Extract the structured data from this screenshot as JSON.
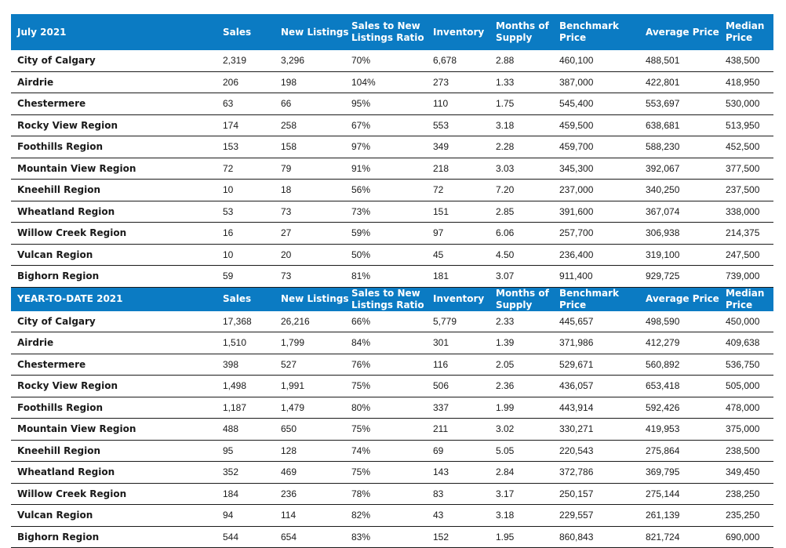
{
  "headers": {
    "sales": "Sales",
    "new_listings": "New Listings",
    "ratio": "Sales to New Listings Ratio",
    "inventory": "Inventory",
    "months": "Months of Supply",
    "benchmark": "Benchmark Price",
    "average": "Average Price",
    "median": "Median Price"
  },
  "sections": [
    {
      "title": "July 2021",
      "rows": [
        {
          "region": "City of Calgary",
          "sales": "2,319",
          "new_listings": "3,296",
          "ratio": "70%",
          "inventory": "6,678",
          "months": "2.88",
          "benchmark": "460,100",
          "average": "488,501",
          "median": "438,500"
        },
        {
          "region": "Airdrie",
          "sales": "206",
          "new_listings": "198",
          "ratio": "104%",
          "inventory": "273",
          "months": "1.33",
          "benchmark": "387,000",
          "average": "422,801",
          "median": "418,950"
        },
        {
          "region": "Chestermere",
          "sales": "63",
          "new_listings": "66",
          "ratio": "95%",
          "inventory": "110",
          "months": "1.75",
          "benchmark": "545,400",
          "average": "553,697",
          "median": "530,000"
        },
        {
          "region": "Rocky View Region",
          "sales": "174",
          "new_listings": "258",
          "ratio": "67%",
          "inventory": "553",
          "months": "3.18",
          "benchmark": "459,500",
          "average": "638,681",
          "median": "513,950"
        },
        {
          "region": "Foothills Region",
          "sales": "153",
          "new_listings": "158",
          "ratio": "97%",
          "inventory": "349",
          "months": "2.28",
          "benchmark": "459,700",
          "average": "588,230",
          "median": "452,500"
        },
        {
          "region": "Mountain View Region",
          "sales": "72",
          "new_listings": "79",
          "ratio": "91%",
          "inventory": "218",
          "months": "3.03",
          "benchmark": "345,300",
          "average": "392,067",
          "median": "377,500"
        },
        {
          "region": "Kneehill Region",
          "sales": "10",
          "new_listings": "18",
          "ratio": "56%",
          "inventory": "72",
          "months": "7.20",
          "benchmark": "237,000",
          "average": "340,250",
          "median": "237,500"
        },
        {
          "region": "Wheatland Region",
          "sales": "53",
          "new_listings": "73",
          "ratio": "73%",
          "inventory": "151",
          "months": "2.85",
          "benchmark": "391,600",
          "average": "367,074",
          "median": "338,000"
        },
        {
          "region": "Willow Creek Region",
          "sales": "16",
          "new_listings": "27",
          "ratio": "59%",
          "inventory": "97",
          "months": "6.06",
          "benchmark": "257,700",
          "average": "306,938",
          "median": "214,375"
        },
        {
          "region": "Vulcan Region",
          "sales": "10",
          "new_listings": "20",
          "ratio": "50%",
          "inventory": "45",
          "months": "4.50",
          "benchmark": "236,400",
          "average": "319,100",
          "median": "247,500"
        },
        {
          "region": "Bighorn Region",
          "sales": "59",
          "new_listings": "73",
          "ratio": "81%",
          "inventory": "181",
          "months": "3.07",
          "benchmark": "911,400",
          "average": "929,725",
          "median": "739,000"
        }
      ]
    },
    {
      "title": "YEAR-TO-DATE 2021",
      "rows": [
        {
          "region": "City of Calgary",
          "sales": "17,368",
          "new_listings": "26,216",
          "ratio": "66%",
          "inventory": "5,779",
          "months": "2.33",
          "benchmark": "445,657",
          "average": "498,590",
          "median": "450,000"
        },
        {
          "region": "Airdrie",
          "sales": "1,510",
          "new_listings": "1,799",
          "ratio": "84%",
          "inventory": "301",
          "months": "1.39",
          "benchmark": "371,986",
          "average": "412,279",
          "median": "409,638"
        },
        {
          "region": "Chestermere",
          "sales": "398",
          "new_listings": "527",
          "ratio": "76%",
          "inventory": "116",
          "months": "2.05",
          "benchmark": "529,671",
          "average": "560,892",
          "median": "536,750"
        },
        {
          "region": "Rocky View Region",
          "sales": "1,498",
          "new_listings": "1,991",
          "ratio": "75%",
          "inventory": "506",
          "months": "2.36",
          "benchmark": "436,057",
          "average": "653,418",
          "median": "505,000"
        },
        {
          "region": "Foothills Region",
          "sales": "1,187",
          "new_listings": "1,479",
          "ratio": "80%",
          "inventory": "337",
          "months": "1.99",
          "benchmark": "443,914",
          "average": "592,426",
          "median": "478,000"
        },
        {
          "region": "Mountain View Region",
          "sales": "488",
          "new_listings": "650",
          "ratio": "75%",
          "inventory": "211",
          "months": "3.02",
          "benchmark": "330,271",
          "average": "419,953",
          "median": "375,000"
        },
        {
          "region": "Kneehill Region",
          "sales": "95",
          "new_listings": "128",
          "ratio": "74%",
          "inventory": "69",
          "months": "5.05",
          "benchmark": "220,543",
          "average": "275,864",
          "median": "238,500"
        },
        {
          "region": "Wheatland Region",
          "sales": "352",
          "new_listings": "469",
          "ratio": "75%",
          "inventory": "143",
          "months": "2.84",
          "benchmark": "372,786",
          "average": "369,795",
          "median": "349,450"
        },
        {
          "region": "Willow Creek Region",
          "sales": "184",
          "new_listings": "236",
          "ratio": "78%",
          "inventory": "83",
          "months": "3.17",
          "benchmark": "250,157",
          "average": "275,144",
          "median": "238,250"
        },
        {
          "region": "Vulcan Region",
          "sales": "94",
          "new_listings": "114",
          "ratio": "82%",
          "inventory": "43",
          "months": "3.18",
          "benchmark": "229,557",
          "average": "261,139",
          "median": "235,250"
        },
        {
          "region": "Bighorn Region",
          "sales": "544",
          "new_listings": "654",
          "ratio": "83%",
          "inventory": "152",
          "months": "1.95",
          "benchmark": "860,843",
          "average": "821,724",
          "median": "690,000"
        }
      ]
    }
  ],
  "colors": {
    "header_bg": "#0b7bc3",
    "header_text": "#ffffff",
    "row_text": "#1a1a1a",
    "rule": "#1a1a1a"
  }
}
